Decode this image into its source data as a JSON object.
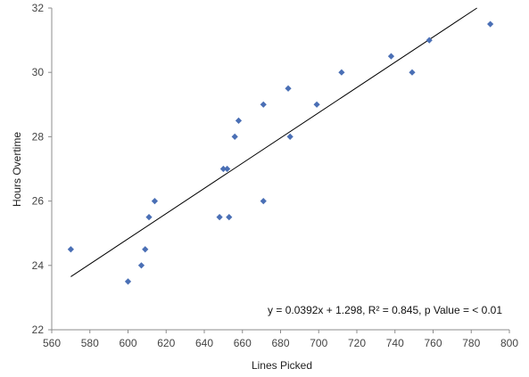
{
  "chart_data": {
    "type": "scatter",
    "xlabel": "Lines Picked",
    "ylabel": "Hours Overtime",
    "xlim": [
      560,
      800
    ],
    "ylim": [
      22,
      32
    ],
    "xticks": [
      560,
      580,
      600,
      620,
      640,
      660,
      680,
      700,
      720,
      740,
      760,
      780,
      800
    ],
    "yticks": [
      22,
      24,
      26,
      28,
      30,
      32
    ],
    "grid": false,
    "legend": "none",
    "point_color": "#4a6fb5",
    "trendline": {
      "color": "#000000",
      "x": [
        570,
        783
      ],
      "y": [
        23.65,
        32.0
      ]
    },
    "annotation": "y = 0.0392x + 1.298, R² = 0.845, p Value =  < 0.01",
    "points": [
      {
        "x": 570,
        "y": 24.5
      },
      {
        "x": 600,
        "y": 23.5
      },
      {
        "x": 607,
        "y": 24.0
      },
      {
        "x": 609,
        "y": 24.5
      },
      {
        "x": 611,
        "y": 25.5
      },
      {
        "x": 614,
        "y": 26.0
      },
      {
        "x": 648,
        "y": 25.5
      },
      {
        "x": 650,
        "y": 27.0
      },
      {
        "x": 652,
        "y": 27.0
      },
      {
        "x": 653,
        "y": 25.5
      },
      {
        "x": 656,
        "y": 28.0
      },
      {
        "x": 658,
        "y": 28.5
      },
      {
        "x": 671,
        "y": 29.0
      },
      {
        "x": 671,
        "y": 26.0
      },
      {
        "x": 684,
        "y": 29.5
      },
      {
        "x": 685,
        "y": 28.0
      },
      {
        "x": 699,
        "y": 29.0
      },
      {
        "x": 712,
        "y": 30.0
      },
      {
        "x": 738,
        "y": 30.5
      },
      {
        "x": 749,
        "y": 30.0
      },
      {
        "x": 758,
        "y": 31.0
      },
      {
        "x": 790,
        "y": 31.5
      }
    ]
  }
}
